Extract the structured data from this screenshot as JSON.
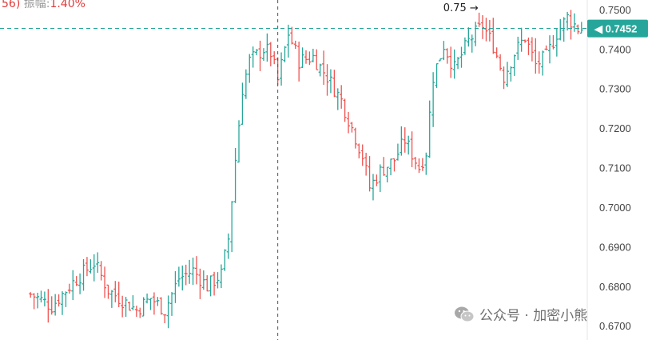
{
  "header": {
    "prefix": "56)",
    "amplitude_label": "振幅:",
    "amplitude_value": "1.40%"
  },
  "watermark": {
    "text": "公众号 · 加密小熊",
    "icon": "wechat-icon"
  },
  "colors": {
    "up": "#26a69a",
    "down": "#ef5350",
    "price_line": "#26a69a",
    "crosshair": "#555555",
    "axis_text": "#444444"
  },
  "chart_data": {
    "type": "ohlc",
    "title": "",
    "xlabel": "",
    "ylabel": "",
    "ylim": [
      0.6664,
      0.7524
    ],
    "y_ticks": [
      "0.7500",
      "0.7400",
      "0.7300",
      "0.7200",
      "0.7100",
      "0.7000",
      "0.6900",
      "0.6800",
      "0.6700"
    ],
    "y_tick_values": [
      0.75,
      0.74,
      0.73,
      0.72,
      0.71,
      0.7,
      0.69,
      0.68,
      0.67
    ],
    "current_price": {
      "label": "0.7452",
      "value": 0.7452
    },
    "annotation": {
      "text": "0.75 →",
      "bar_index": 128,
      "value": 0.75
    },
    "crosshair_bar_index": 70,
    "close_path": [
      [
        0,
        0.678
      ],
      [
        6,
        0.675
      ],
      [
        12,
        0.681
      ],
      [
        18,
        0.686
      ],
      [
        22,
        0.679
      ],
      [
        30,
        0.674
      ],
      [
        34,
        0.677
      ],
      [
        38,
        0.674
      ],
      [
        42,
        0.682
      ],
      [
        46,
        0.684
      ],
      [
        50,
        0.68
      ],
      [
        54,
        0.683
      ],
      [
        56,
        0.692
      ],
      [
        58,
        0.712
      ],
      [
        60,
        0.73
      ],
      [
        62,
        0.737
      ],
      [
        66,
        0.74
      ],
      [
        68,
        0.739
      ],
      [
        70,
        0.732
      ],
      [
        73,
        0.744
      ],
      [
        76,
        0.737
      ],
      [
        80,
        0.738
      ],
      [
        84,
        0.733
      ],
      [
        88,
        0.727
      ],
      [
        91,
        0.72
      ],
      [
        94,
        0.713
      ],
      [
        96,
        0.705
      ],
      [
        99,
        0.709
      ],
      [
        103,
        0.712
      ],
      [
        106,
        0.717
      ],
      [
        110,
        0.71
      ],
      [
        112,
        0.714
      ],
      [
        114,
        0.733
      ],
      [
        117,
        0.741
      ],
      [
        120,
        0.735
      ],
      [
        124,
        0.742
      ],
      [
        128,
        0.746
      ],
      [
        131,
        0.741
      ],
      [
        134,
        0.733
      ],
      [
        137,
        0.739
      ],
      [
        140,
        0.743
      ],
      [
        143,
        0.736
      ],
      [
        146,
        0.738
      ],
      [
        149,
        0.744
      ],
      [
        152,
        0.748
      ],
      [
        155,
        0.7452
      ]
    ],
    "seed": 7
  }
}
